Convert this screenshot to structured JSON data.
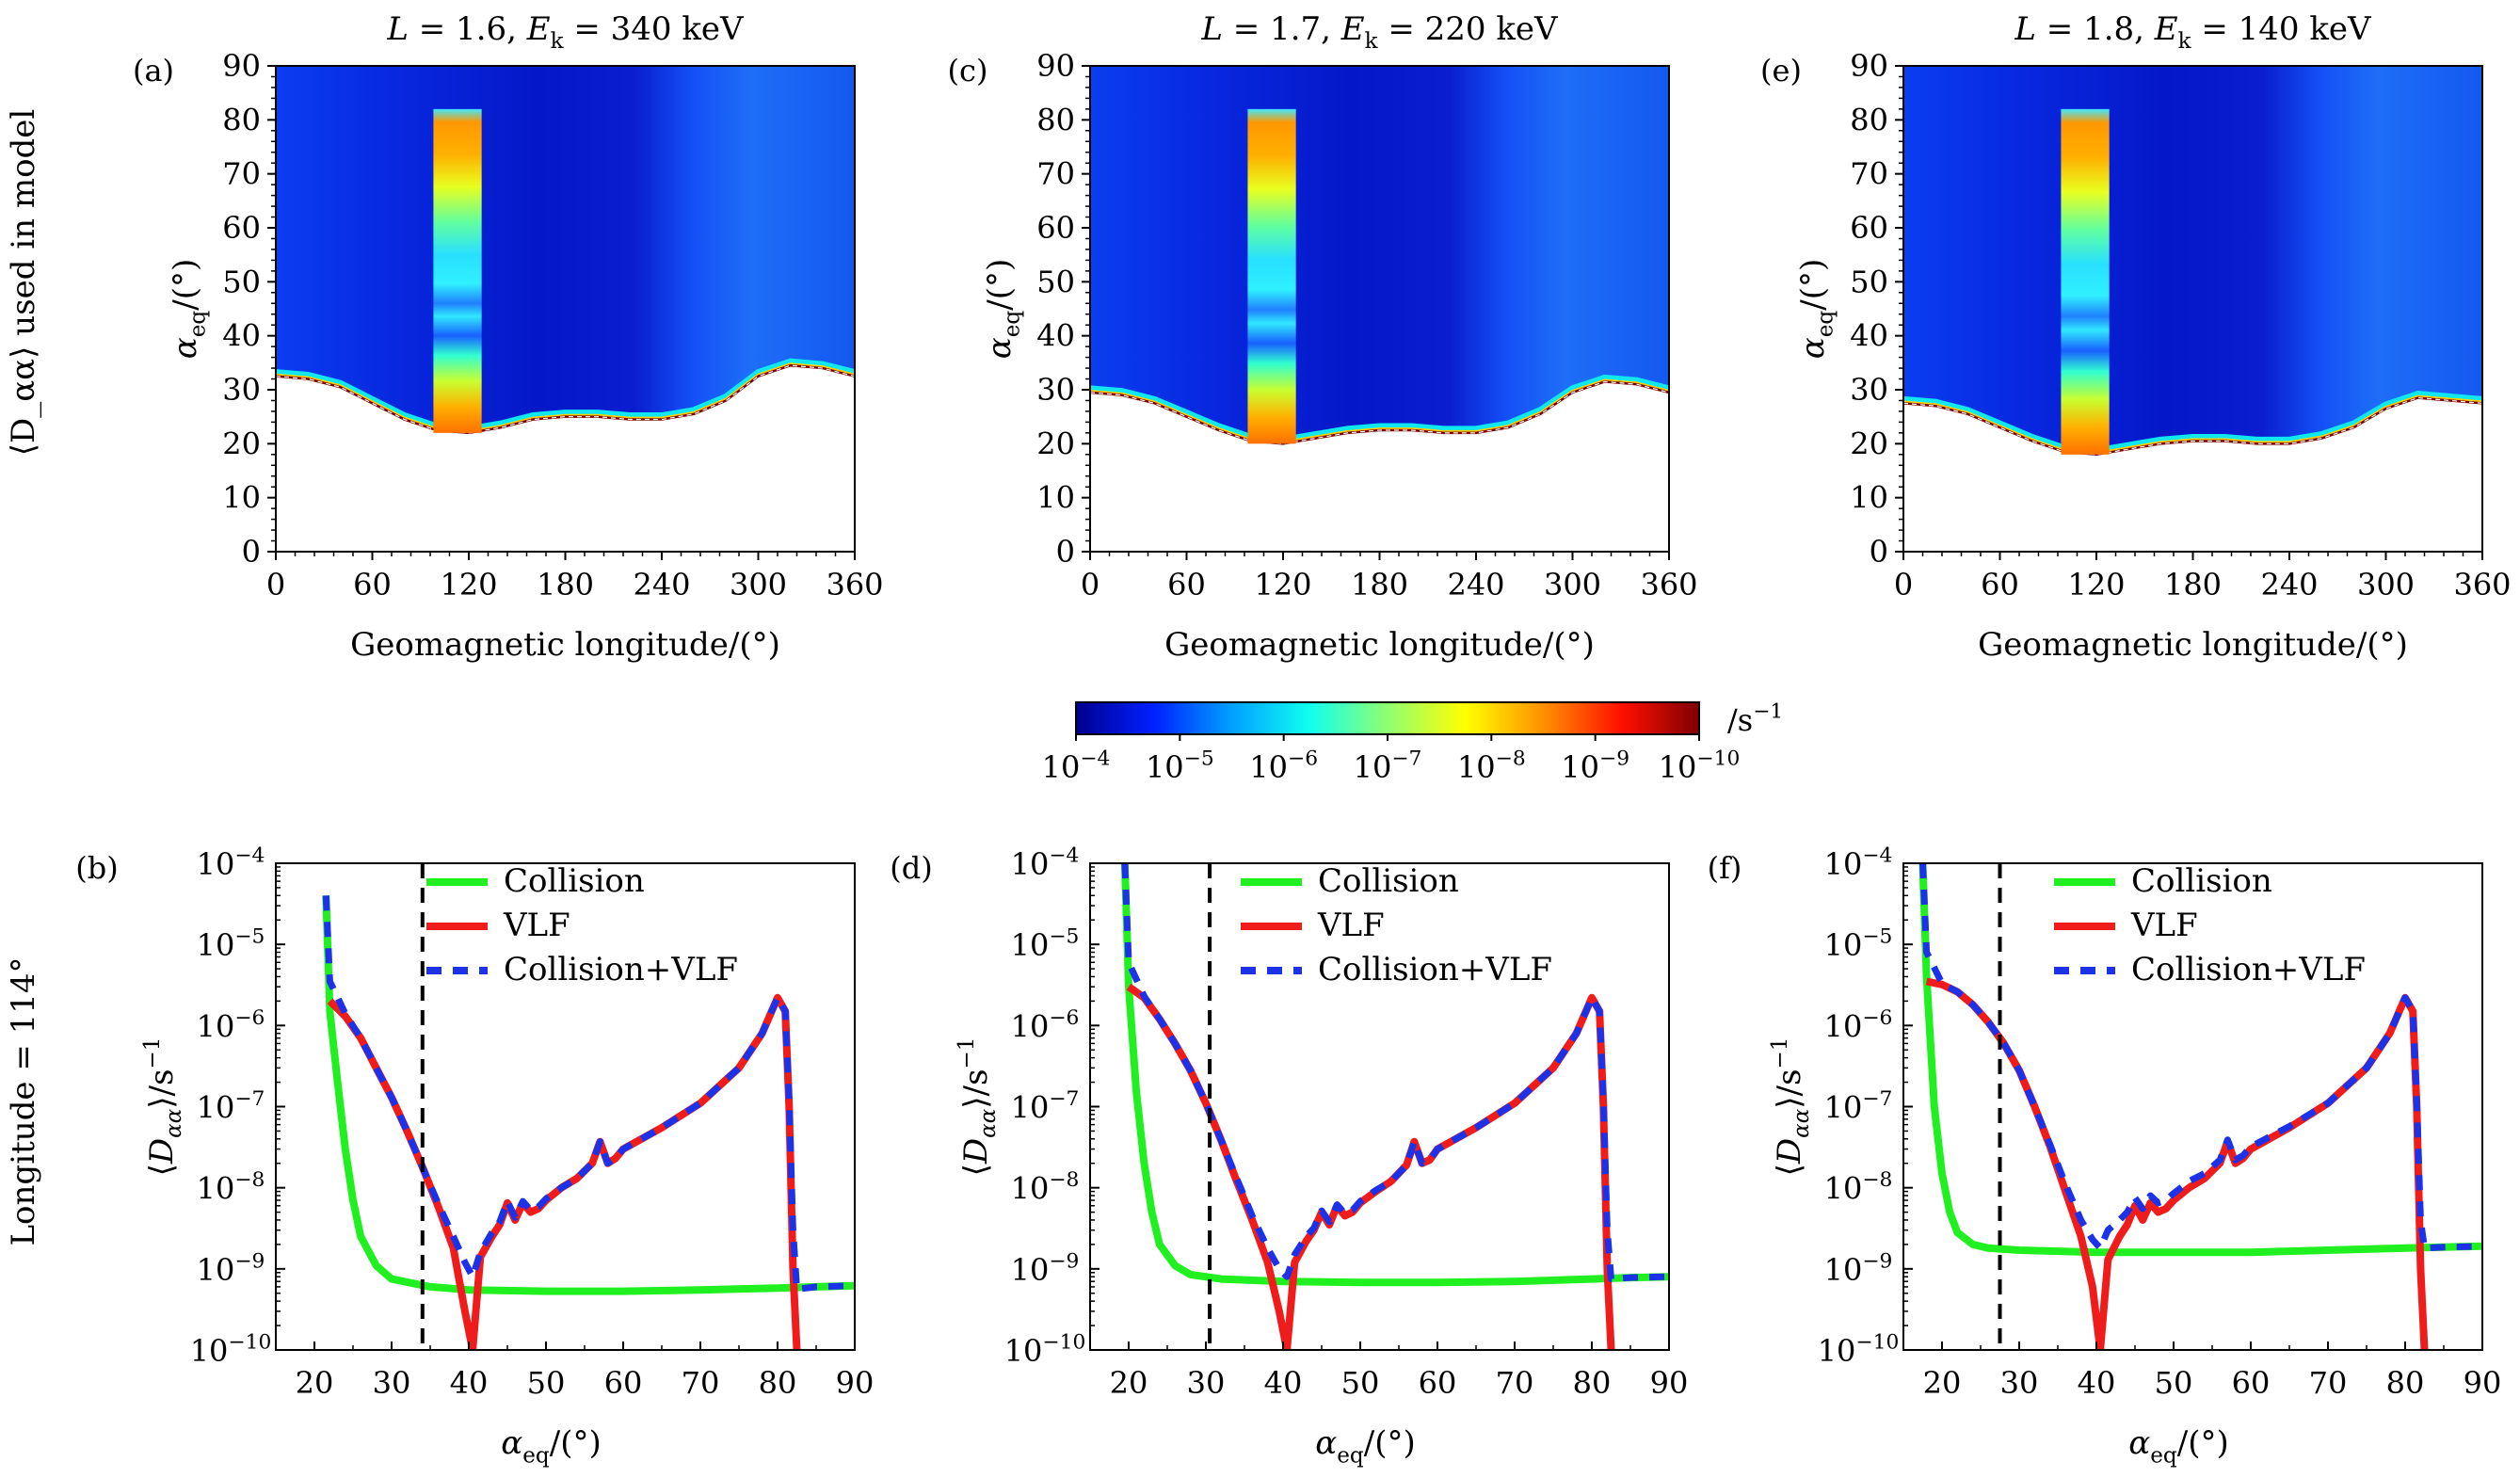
{
  "figure": {
    "row_label_top": "⟨D_αα⟩ used in model",
    "row_label_bottom": "Longitude = 114°",
    "colorbar": {
      "unit": "/s",
      "unit_exp": "−1",
      "tick_labels": [
        "10",
        "10",
        "10",
        "10",
        "10",
        "10",
        "10"
      ],
      "tick_exps": [
        "−4",
        "−5",
        "−6",
        "−7",
        "−8",
        "−9",
        "−10"
      ],
      "stops": [
        "#00008f",
        "#0020ff",
        "#00a0ff",
        "#10ffef",
        "#8fff70",
        "#ffff00",
        "#ff9000",
        "#ff1000",
        "#800000"
      ]
    }
  },
  "chart_data": [
    {
      "type": "heatmap",
      "panel": "(a)",
      "title": "L = 1.6, E_k = 340 keV",
      "xlabel": "Geomagnetic longitude/(°)",
      "ylabel": "α_eq/(°)",
      "xlim": [
        0,
        360
      ],
      "ylim": [
        0,
        90
      ],
      "xticks": [
        0,
        60,
        120,
        180,
        240,
        300,
        360
      ],
      "yticks": [
        0,
        10,
        20,
        30,
        40,
        50,
        60,
        70,
        80,
        90
      ],
      "highlight_band_longitude": [
        98,
        128
      ],
      "highlight_band_alpha": [
        22,
        82
      ],
      "boundary": {
        "longitude": [
          0,
          20,
          40,
          60,
          80,
          100,
          120,
          140,
          160,
          180,
          200,
          220,
          240,
          260,
          280,
          300,
          320,
          340,
          360
        ],
        "alpha_eq": [
          32.5,
          32,
          30.5,
          27.5,
          24.5,
          22.5,
          22,
          23,
          24.5,
          25,
          25,
          24.5,
          24.5,
          25.5,
          28,
          32.5,
          34.5,
          34,
          32.5
        ]
      }
    },
    {
      "type": "line",
      "panel": "(b)",
      "xlabel": "α_eq/(°)",
      "ylabel": "⟨D_αα⟩/s",
      "xlim": [
        15,
        90
      ],
      "ylim": [
        1e-10,
        0.0001
      ],
      "yscale": "log",
      "xticks": [
        20,
        30,
        40,
        50,
        60,
        70,
        80,
        90
      ],
      "loss_cone_alpha": 34,
      "legend": [
        "Collision",
        "VLF",
        "Collision+VLF"
      ],
      "series": [
        {
          "name": "Collision",
          "x": [
            21.5,
            22,
            23,
            24,
            25,
            26,
            28,
            30,
            35,
            40,
            50,
            60,
            70,
            80,
            85,
            90
          ],
          "y": [
            4e-05,
            1.5e-06,
            2e-07,
            3e-08,
            7e-09,
            2.5e-09,
            1.1e-09,
            7.5e-10,
            6e-10,
            5.5e-10,
            5.3e-10,
            5.3e-10,
            5.5e-10,
            5.8e-10,
            6e-10,
            6.2e-10
          ]
        },
        {
          "name": "VLF",
          "x": [
            22,
            24,
            26,
            28,
            30,
            32,
            34,
            36,
            38,
            39.5,
            40.5,
            41.5,
            43,
            44,
            45,
            46,
            47,
            48,
            49,
            50,
            52,
            54,
            56,
            57,
            58,
            59,
            60,
            65,
            70,
            75,
            78,
            80,
            81,
            81.5,
            82,
            82.5
          ],
          "y": [
            2e-06,
            1.3e-06,
            7e-07,
            3e-07,
            1.3e-07,
            5e-08,
            1.8e-08,
            6e-09,
            1.8e-09,
            3e-10,
            1e-10,
            1.4e-09,
            2.5e-09,
            3.5e-09,
            6.5e-09,
            4e-09,
            6.5e-09,
            5e-09,
            5.5e-09,
            7e-09,
            1e-08,
            1.3e-08,
            2e-08,
            3.7e-08,
            2e-08,
            2.3e-08,
            3e-08,
            5.5e-08,
            1.1e-07,
            3e-07,
            8e-07,
            2.2e-06,
            1.5e-06,
            1e-07,
            1e-09,
            1e-10
          ]
        },
        {
          "name": "Collision+VLF",
          "x": [
            21.5,
            22,
            24,
            26,
            28,
            30,
            32,
            34,
            36,
            38,
            39.5,
            40.5,
            41.5,
            43,
            44,
            45,
            46,
            47,
            48,
            49,
            50,
            52,
            54,
            56,
            57,
            58,
            59,
            60,
            65,
            70,
            75,
            78,
            80,
            81,
            81.5,
            82,
            82.5,
            85,
            90
          ],
          "y": [
            4e-05,
            3.5e-06,
            1.4e-06,
            7e-07,
            3e-07,
            1.3e-07,
            5e-08,
            1.8e-08,
            6.5e-09,
            2.5e-09,
            1.2e-09,
            8e-10,
            1.6e-09,
            2.8e-09,
            3.8e-09,
            6.8e-09,
            4.3e-09,
            6.8e-09,
            5.3e-09,
            5.8e-09,
            7.3e-09,
            1e-08,
            1.3e-08,
            2e-08,
            3.7e-08,
            2e-08,
            2.3e-08,
            3e-08,
            5.5e-08,
            1.1e-07,
            3e-07,
            8e-07,
            2.2e-06,
            1.5e-06,
            1.2e-07,
            3e-09,
            5.6e-10,
            6e-10,
            6.2e-10
          ]
        }
      ]
    },
    {
      "type": "heatmap",
      "panel": "(c)",
      "title": "L = 1.7, E_k = 220 keV",
      "xlabel": "Geomagnetic longitude/(°)",
      "ylabel": "α_eq/(°)",
      "xlim": [
        0,
        360
      ],
      "ylim": [
        0,
        90
      ],
      "xticks": [
        0,
        60,
        120,
        180,
        240,
        300,
        360
      ],
      "yticks": [
        0,
        10,
        20,
        30,
        40,
        50,
        60,
        70,
        80,
        90
      ],
      "highlight_band_longitude": [
        98,
        128
      ],
      "highlight_band_alpha": [
        20,
        82
      ],
      "boundary": {
        "longitude": [
          0,
          20,
          40,
          60,
          80,
          100,
          120,
          140,
          160,
          180,
          200,
          220,
          240,
          260,
          280,
          300,
          320,
          340,
          360
        ],
        "alpha_eq": [
          29.5,
          29,
          27.5,
          25,
          22.5,
          20.5,
          20,
          21,
          22,
          22.5,
          22.5,
          22,
          22,
          23,
          25.5,
          29.5,
          31.5,
          31,
          29.5
        ]
      }
    },
    {
      "type": "line",
      "panel": "(d)",
      "xlabel": "α_eq/(°)",
      "ylabel": "⟨D_αα⟩/s",
      "xlim": [
        15,
        90
      ],
      "ylim": [
        1e-10,
        0.0001
      ],
      "yscale": "log",
      "xticks": [
        20,
        30,
        40,
        50,
        60,
        70,
        80,
        90
      ],
      "loss_cone_alpha": 30.5,
      "legend": [
        "Collision",
        "VLF",
        "Collision+VLF"
      ],
      "series": [
        {
          "name": "Collision",
          "x": [
            19.5,
            20,
            21,
            22,
            23,
            24,
            26,
            28,
            32,
            40,
            50,
            60,
            70,
            80,
            85,
            90
          ],
          "y": [
            0.0001,
            3e-06,
            1.5e-07,
            2e-08,
            5e-09,
            2e-09,
            1.1e-09,
            8.5e-10,
            7.5e-10,
            7e-10,
            6.8e-10,
            6.8e-10,
            7e-10,
            7.5e-10,
            7.8e-10,
            8e-10
          ]
        },
        {
          "name": "VLF",
          "x": [
            20,
            22,
            24,
            26,
            28,
            30,
            32,
            34,
            36,
            38,
            39.5,
            40.5,
            41.5,
            43,
            44,
            45,
            46,
            47,
            48,
            49,
            50,
            52,
            54,
            56,
            57,
            58,
            59,
            60,
            65,
            70,
            75,
            78,
            80,
            81,
            81.5,
            82,
            82.5
          ],
          "y": [
            3e-06,
            2.2e-06,
            1.2e-06,
            6e-07,
            2.8e-07,
            1.1e-07,
            3.8e-08,
            1.2e-08,
            4e-09,
            1.2e-09,
            3e-10,
            1e-10,
            1.2e-09,
            2.2e-09,
            3e-09,
            5e-09,
            3.5e-09,
            6e-09,
            4.5e-09,
            5e-09,
            6.5e-09,
            9e-09,
            1.2e-08,
            1.9e-08,
            3.7e-08,
            2e-08,
            2.2e-08,
            3e-08,
            5.5e-08,
            1.1e-07,
            3e-07,
            8e-07,
            2.2e-06,
            1.5e-06,
            1e-07,
            1e-09,
            1e-10
          ]
        },
        {
          "name": "Collision+VLF",
          "x": [
            19.5,
            20,
            22,
            24,
            26,
            28,
            30,
            32,
            34,
            36,
            38,
            39.5,
            40.5,
            41.5,
            43,
            44,
            45,
            46,
            47,
            48,
            49,
            50,
            52,
            54,
            56,
            57,
            58,
            59,
            60,
            65,
            70,
            75,
            78,
            80,
            81,
            81.5,
            82,
            82.5,
            85,
            90
          ],
          "y": [
            0.0001,
            6e-06,
            2.3e-06,
            1.2e-06,
            6e-07,
            2.8e-07,
            1.1e-07,
            3.8e-08,
            1.3e-08,
            4.5e-09,
            1.8e-09,
            1e-09,
            8e-10,
            1.5e-09,
            2.5e-09,
            3.2e-09,
            5.2e-09,
            3.8e-09,
            6.2e-09,
            4.8e-09,
            5.3e-09,
            6.8e-09,
            9.3e-09,
            1.2e-08,
            1.9e-08,
            3.7e-08,
            2e-08,
            2.2e-08,
            3e-08,
            5.5e-08,
            1.1e-07,
            3e-07,
            8e-07,
            2.2e-06,
            1.5e-06,
            1.2e-07,
            3e-09,
            7.5e-10,
            7.8e-10,
            8e-10
          ]
        }
      ]
    },
    {
      "type": "heatmap",
      "panel": "(e)",
      "title": "L = 1.8, E_k = 140 keV",
      "xlabel": "Geomagnetic longitude/(°)",
      "ylabel": "α_eq/(°)",
      "xlim": [
        0,
        360
      ],
      "ylim": [
        0,
        90
      ],
      "xticks": [
        0,
        60,
        120,
        180,
        240,
        300,
        360
      ],
      "yticks": [
        0,
        10,
        20,
        30,
        40,
        50,
        60,
        70,
        80,
        90
      ],
      "highlight_band_longitude": [
        98,
        128
      ],
      "highlight_band_alpha": [
        18,
        82
      ],
      "boundary": {
        "longitude": [
          0,
          20,
          40,
          60,
          80,
          100,
          120,
          140,
          160,
          180,
          200,
          220,
          240,
          260,
          280,
          300,
          320,
          340,
          360
        ],
        "alpha_eq": [
          27.5,
          27,
          25.5,
          23,
          20.5,
          18.5,
          18,
          19,
          20,
          20.5,
          20.5,
          20,
          20,
          21,
          23,
          26.5,
          28.5,
          28,
          27.5
        ]
      }
    },
    {
      "type": "line",
      "panel": "(f)",
      "xlabel": "α_eq/(°)",
      "ylabel": "⟨D_αα⟩/s",
      "xlim": [
        15,
        90
      ],
      "ylim": [
        1e-10,
        0.0001
      ],
      "yscale": "log",
      "xticks": [
        20,
        30,
        40,
        50,
        60,
        70,
        80,
        90
      ],
      "loss_cone_alpha": 27.5,
      "legend": [
        "Collision",
        "VLF",
        "Collision+VLF"
      ],
      "series": [
        {
          "name": "Collision",
          "x": [
            17.5,
            18,
            19,
            20,
            21,
            22,
            24,
            26,
            30,
            40,
            50,
            60,
            70,
            80,
            85,
            90
          ],
          "y": [
            0.0001,
            4e-06,
            1e-07,
            1.5e-08,
            5e-09,
            2.8e-09,
            2e-09,
            1.8e-09,
            1.7e-09,
            1.6e-09,
            1.6e-09,
            1.6e-09,
            1.7e-09,
            1.8e-09,
            1.85e-09,
            1.9e-09
          ]
        },
        {
          "name": "VLF",
          "x": [
            18,
            20,
            22,
            24,
            26,
            28,
            30,
            32,
            34,
            36,
            38,
            39.5,
            40.5,
            41.5,
            43,
            44,
            45,
            46,
            47,
            48,
            49,
            50,
            52,
            54,
            56,
            57,
            58,
            59,
            60,
            65,
            70,
            75,
            78,
            80,
            81,
            81.5,
            82,
            82.5
          ],
          "y": [
            3.5e-06,
            3.2e-06,
            2.6e-06,
            1.8e-06,
            1.1e-06,
            6e-07,
            2.8e-07,
            1e-07,
            3.2e-08,
            9e-09,
            2.5e-09,
            6e-10,
            1e-10,
            1.3e-09,
            2.5e-09,
            3.5e-09,
            6e-09,
            4e-09,
            6.5e-09,
            5e-09,
            5.5e-09,
            7e-09,
            1e-08,
            1.3e-08,
            2e-08,
            3.7e-08,
            2e-08,
            2.3e-08,
            3e-08,
            5.5e-08,
            1.1e-07,
            3e-07,
            8e-07,
            2.2e-06,
            1.5e-06,
            1e-07,
            1e-09,
            1e-10
          ]
        },
        {
          "name": "Collision+VLF",
          "x": [
            17.5,
            18,
            20,
            22,
            24,
            26,
            28,
            30,
            32,
            34,
            36,
            38,
            39.5,
            40.5,
            41.5,
            43,
            44,
            45,
            46,
            47,
            48,
            49,
            50,
            52,
            54,
            56,
            57,
            58,
            59,
            60,
            65,
            70,
            75,
            78,
            80,
            81,
            81.5,
            82,
            82.5,
            85,
            90
          ],
          "y": [
            0.0001,
            8e-06,
            3.3e-06,
            2.6e-06,
            1.8e-06,
            1.1e-06,
            6e-07,
            2.8e-07,
            1e-07,
            3.4e-08,
            1.1e-08,
            4e-09,
            2.3e-09,
            1.8e-09,
            3e-09,
            4e-09,
            5e-09,
            7.5e-09,
            5.5e-09,
            8e-09,
            6.5e-09,
            7e-09,
            8.5e-09,
            1.2e-08,
            1.5e-08,
            2.2e-08,
            3.9e-08,
            2.2e-08,
            2.5e-08,
            3.2e-08,
            5.7e-08,
            1.1e-07,
            3e-07,
            8e-07,
            2.2e-06,
            1.5e-06,
            1.2e-07,
            4e-09,
            1.8e-09,
            1.85e-09,
            1.9e-09
          ]
        }
      ]
    }
  ]
}
